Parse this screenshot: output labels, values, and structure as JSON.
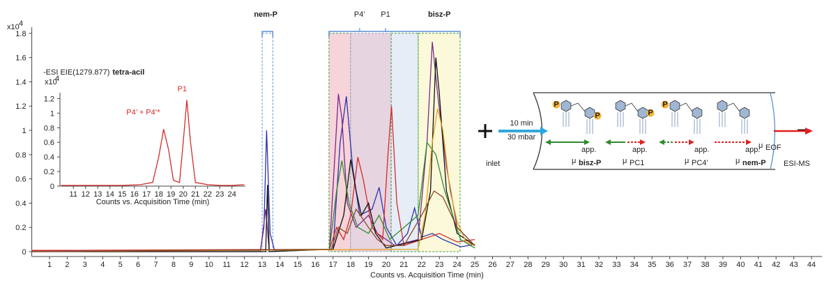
{
  "chart_data": [
    {
      "type": "line",
      "multiplier": {
        "base": "x10",
        "exp": "4"
      },
      "x_label": "Counts vs. Acquisition Time (min)",
      "xlim": [
        0,
        44.6
      ],
      "ylim": [
        -0.04,
        1.85
      ],
      "xticks": [
        1,
        2,
        3,
        4,
        5,
        6,
        7,
        8,
        9,
        10,
        11,
        12,
        13,
        14,
        15,
        16,
        17,
        18,
        19,
        20,
        21,
        22,
        23,
        24,
        25,
        26,
        27,
        28,
        29,
        30,
        31,
        32,
        33,
        34,
        35,
        36,
        37,
        38,
        39,
        40,
        41,
        42,
        43,
        44
      ],
      "yticks": [
        0,
        0.2,
        0.4,
        0.6,
        0.8,
        1,
        1.2,
        1.4,
        1.6,
        1.8
      ],
      "regions": [
        {
          "xmin": 13.0,
          "xmax": 13.6,
          "color": "#ffffff",
          "outline": "#5b8fd6"
        },
        {
          "xmin": 16.77,
          "xmax": 17.99,
          "color": "#f6cdd2",
          "outline": "#3c9a3c"
        },
        {
          "xmin": 17.99,
          "xmax": 20.28,
          "color": "#e3ccdc",
          "outline": "#9aa6c8"
        },
        {
          "xmin": 20.28,
          "xmax": 21.81,
          "color": "#e2eaf5",
          "outline": "#3c9a3c"
        },
        {
          "xmin": 21.81,
          "xmax": 24.17,
          "color": "#fcf8d4",
          "outline": "#3c9a3c"
        }
      ],
      "annotations": [
        {
          "text": "nem-P",
          "x": 13.2,
          "bold": true
        },
        {
          "text": "P4’",
          "x": 18.5,
          "bold": false
        },
        {
          "text": "P1",
          "x": 19.96,
          "bold": false
        },
        {
          "text": "bisz-P",
          "x": 23.0,
          "bold": true
        }
      ],
      "series": [
        {
          "color": "#2b2fb0",
          "x": [
            0,
            12.9,
            13.1,
            13.25,
            13.45,
            13.7,
            17.0,
            17.4,
            17.75,
            18.1,
            18.5,
            19.2,
            19.6,
            20.0,
            20.6,
            21.2,
            21.6,
            22.0,
            22.6,
            23.2,
            24.2,
            25.0
          ],
          "values": [
            0.01,
            0.01,
            0.2,
            1.0,
            0.15,
            0.01,
            0.02,
            0.9,
            1.28,
            0.7,
            0.3,
            0.35,
            0.53,
            0.2,
            0.05,
            0.15,
            0.36,
            0.12,
            0.15,
            0.1,
            0.04,
            0.06
          ]
        },
        {
          "color": "#7a2a8f",
          "x": [
            0,
            12.9,
            13.2,
            13.4,
            16.8,
            17.3,
            17.5,
            17.8,
            18.3,
            19.0,
            19.5,
            20.5,
            21.8,
            22.3,
            22.6,
            22.9,
            23.4,
            24.0,
            25.0
          ],
          "values": [
            0,
            0,
            0.35,
            0,
            0.02,
            1.3,
            1.1,
            0.4,
            0.2,
            0.3,
            0.15,
            0.05,
            0.1,
            0.9,
            1.73,
            1.3,
            0.7,
            0.2,
            0.05
          ]
        },
        {
          "color": "#d42a2a",
          "x": [
            0,
            16.8,
            17.2,
            17.6,
            18.0,
            18.4,
            18.7,
            19.2,
            19.8,
            20.1,
            20.3,
            20.6,
            21.0,
            22.0,
            23.0,
            24.0,
            25.0
          ],
          "values": [
            0.01,
            0.02,
            0.2,
            0.1,
            0.3,
            0.78,
            0.6,
            0.2,
            0.1,
            0.8,
            1.2,
            0.4,
            0.05,
            0.1,
            0.15,
            0.08,
            0.1
          ]
        },
        {
          "color": "#111111",
          "x": [
            0,
            13.2,
            13.3,
            13.4,
            17.0,
            17.6,
            18.0,
            18.3,
            18.6,
            19.0,
            19.4,
            20.0,
            22.0,
            22.5,
            22.8,
            23.0,
            23.4,
            24.0,
            25.0
          ],
          "values": [
            0,
            0,
            0.55,
            0,
            0.02,
            0.3,
            0.76,
            0.5,
            0.3,
            0.4,
            0.15,
            0.03,
            0.1,
            0.5,
            1.6,
            1.3,
            0.5,
            0.15,
            0.05
          ]
        },
        {
          "color": "#2e8b2e",
          "x": [
            0,
            16.8,
            17.2,
            17.5,
            17.9,
            18.4,
            19.0,
            19.6,
            20.2,
            21.0,
            21.8,
            22.3,
            22.8,
            23.3,
            24.2,
            25.0
          ],
          "values": [
            0,
            0.02,
            0.5,
            0.75,
            0.4,
            0.2,
            0.15,
            0.3,
            0.1,
            0.2,
            0.3,
            0.9,
            0.8,
            0.5,
            0.1,
            0.03
          ]
        },
        {
          "color": "#e0a020",
          "x": [
            0,
            21.8,
            22.2,
            22.6,
            22.9,
            23.2,
            23.6,
            24.0,
            24.5,
            25.0
          ],
          "values": [
            0,
            0.02,
            0.3,
            0.9,
            1.18,
            1.0,
            0.5,
            0.25,
            0.08,
            0.05
          ]
        },
        {
          "color": "#8b4a2a",
          "x": [
            0,
            16.9,
            17.3,
            17.8,
            18.3,
            19.0,
            19.5,
            20.0,
            21.0,
            22.0,
            22.7,
            23.2,
            24.0,
            25.0
          ],
          "values": [
            0,
            0.02,
            0.2,
            0.15,
            0.35,
            0.2,
            0.1,
            0.05,
            0.05,
            0.3,
            0.5,
            0.45,
            0.2,
            0.05
          ]
        }
      ]
    },
    {
      "type": "line",
      "multiplier": {
        "base": "x10",
        "exp": "4"
      },
      "title": "-ESI EIE(1279.877)",
      "title_bold": "tetra-acil",
      "x_label": "Counts vs. Acquisition Time (min)",
      "xlim": [
        9.9,
        25.1
      ],
      "ylim": [
        0,
        1.28
      ],
      "xticks": [
        11,
        12,
        13,
        14,
        15,
        16,
        17,
        18,
        19,
        20,
        21,
        22,
        23,
        24
      ],
      "yticks": [
        0,
        0.2,
        0.4,
        0.6,
        0.8,
        1,
        1.2
      ],
      "annotations": [
        {
          "text": "P4’ + P4’*",
          "x": 18.1,
          "y": 0.98
        },
        {
          "text": "P1",
          "x": 20.3,
          "y": 1.3
        }
      ],
      "series": [
        {
          "color": "#d42a2a",
          "x": [
            10,
            15,
            16.5,
            17.5,
            18.0,
            18.4,
            18.8,
            19.2,
            19.7,
            20.0,
            20.3,
            20.6,
            21.0,
            22,
            23,
            24,
            25
          ],
          "values": [
            0.01,
            0.01,
            0.02,
            0.05,
            0.4,
            0.78,
            0.5,
            0.08,
            0.05,
            0.6,
            1.18,
            0.6,
            0.05,
            0.02,
            0.01,
            0.01,
            0.02
          ]
        }
      ]
    }
  ],
  "diagram": {
    "inlet": "inlet",
    "injection": [
      "10 min",
      "30 mbar"
    ],
    "outlet": "ESI-MS",
    "phosphate": "P",
    "mu": "μ",
    "app": "app.",
    "mobilities": [
      "bisz-P",
      "PC1",
      "PC4’",
      "nem-P"
    ],
    "eof": "EOF"
  }
}
